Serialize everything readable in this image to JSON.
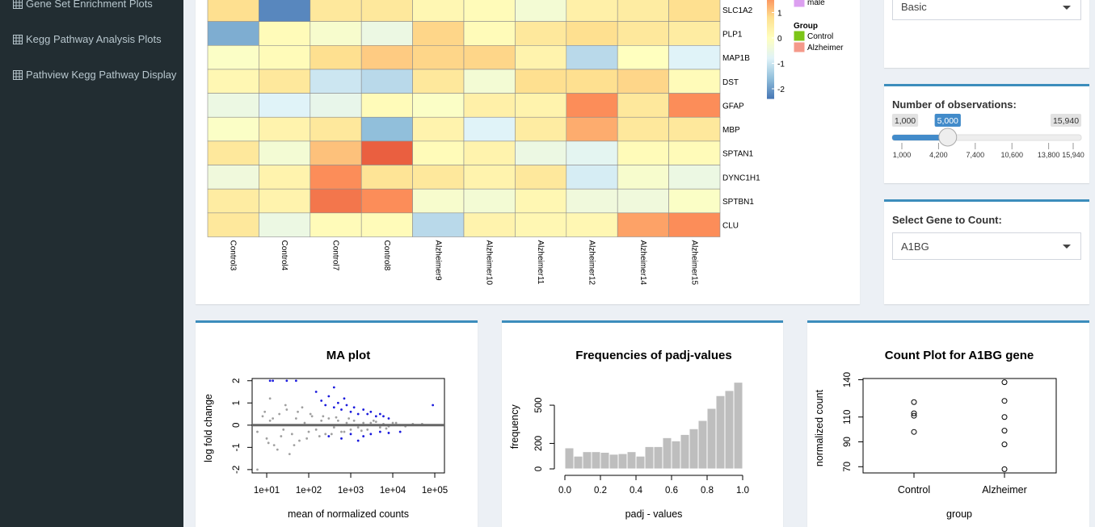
{
  "sidebar": {
    "items": [
      "Gene Set Enrichment Plots",
      "Kegg Pathway Analysis Plots",
      "Pathview Kegg Pathway Display"
    ]
  },
  "heatmap": {
    "type": "heatmap",
    "rows": [
      "SLC1A2",
      "PLP1",
      "MAP1B",
      "DST",
      "GFAP",
      "MBP",
      "SPTAN1",
      "DYNC1H1",
      "SPTBN1",
      "CLU"
    ],
    "columns": [
      "Control3",
      "Control4",
      "Control7",
      "Control8",
      "Alzheimer9",
      "Alzheimer10",
      "Alzheimer11",
      "Alzheimer12",
      "Alzheimer14",
      "Alzheimer15"
    ],
    "values": [
      [
        0.8,
        -2.2,
        0.6,
        0.6,
        0.2,
        0.1,
        -0.3,
        0.4,
        0.5,
        0.8
      ],
      [
        -1.8,
        0.1,
        -0.2,
        -0.5,
        0.9,
        0.1,
        0.6,
        0.8,
        0.6,
        0.5
      ],
      [
        -0.1,
        0.1,
        0.8,
        1.0,
        0.9,
        0.9,
        0.3,
        -1.2,
        0.0,
        -0.8
      ],
      [
        0.2,
        0.6,
        -1.0,
        -1.2,
        0.6,
        -0.3,
        0.8,
        0.8,
        0.9,
        0.1
      ],
      [
        -0.5,
        -0.8,
        -0.6,
        0.1,
        -0.1,
        0.4,
        0.3,
        1.6,
        0.6,
        1.6
      ],
      [
        -0.1,
        0.3,
        0.6,
        -1.6,
        0.3,
        -0.8,
        0.5,
        1.3,
        0.6,
        0.6
      ],
      [
        0.6,
        -0.3,
        1.1,
        2.0,
        0.1,
        0.3,
        -0.5,
        -0.7,
        0.1,
        0.1
      ],
      [
        -0.4,
        0.3,
        1.6,
        0.7,
        0.6,
        0.3,
        0.6,
        -0.9,
        -0.2,
        -0.5
      ],
      [
        0.5,
        0.3,
        1.8,
        1.6,
        -0.2,
        -0.3,
        0.2,
        -0.4,
        -0.4,
        -0.1
      ],
      [
        0.6,
        -0.5,
        0.1,
        0.1,
        -1.2,
        0.3,
        0.2,
        0.2,
        1.4,
        1.6
      ]
    ],
    "color_range": [
      -2.4,
      2.4
    ],
    "palette": [
      "#4575b4",
      "#91bfdb",
      "#e0f3f8",
      "#ffffbf",
      "#fee090",
      "#fc8d59",
      "#d73027"
    ],
    "colorbar_ticks": [
      1,
      0,
      -1,
      -2
    ],
    "annotation_legends": [
      {
        "entries": [
          {
            "name": "male",
            "color": "#dca0f0"
          }
        ]
      },
      {
        "title": "Group",
        "entries": [
          {
            "name": "Control",
            "color": "#7cc517"
          },
          {
            "name": "Alzheimer",
            "color": "#f4998a"
          }
        ]
      }
    ]
  },
  "controls": {
    "plot_type": "Basic",
    "observations": {
      "label": "Number of observations:",
      "min": {
        "value": 1000,
        "label": "1,000"
      },
      "max": {
        "value": 15940,
        "label": "15,940"
      },
      "value": {
        "value": 5000,
        "label": "5,000"
      },
      "ticks": [
        {
          "value": 1000,
          "label": "1,000"
        },
        {
          "value": 4200,
          "label": "4,200"
        },
        {
          "value": 7400,
          "label": "7,400"
        },
        {
          "value": 10600,
          "label": "10,600"
        },
        {
          "value": 13800,
          "label": "13,800"
        },
        {
          "value": 15940,
          "label": "15,940"
        }
      ],
      "color": "#428bca"
    },
    "gene": {
      "label": "Select Gene to Count:",
      "value": "A1BG"
    }
  },
  "plots": [
    {
      "type": "scatter",
      "title": "MA plot",
      "xlabel": "mean of normalized counts",
      "ylabel": "log fold change",
      "xlog": true,
      "xlim": [
        4.5,
        170000
      ],
      "ylim": [
        -2.15,
        2.1
      ],
      "xticks": [
        {
          "value": 10,
          "label": "1e+01"
        },
        {
          "value": 100,
          "label": "1e+02"
        },
        {
          "value": 1000,
          "label": "1e+03"
        },
        {
          "value": 10000,
          "label": "1e+04"
        },
        {
          "value": 100000,
          "label": "1e+05"
        }
      ],
      "yticks": [
        2,
        1,
        0,
        -1,
        -2
      ],
      "reference_line": 0,
      "series": [
        {
          "color": "#a0a0a0",
          "x": [
            6,
            8,
            10,
            12,
            15,
            20,
            25,
            30,
            40,
            50,
            60,
            80,
            100,
            120,
            150,
            200,
            250,
            300,
            400,
            500,
            600,
            800,
            1000,
            1200,
            1500,
            2000,
            2500,
            3000,
            4000,
            5000,
            6000,
            8000,
            10000,
            15000,
            20000,
            30000,
            12,
            18,
            35,
            70,
            9,
            11,
            14,
            22,
            28,
            45,
            55,
            90,
            110,
            180,
            220,
            350,
            450,
            700,
            900,
            1800,
            3500,
            7000,
            12000,
            50000,
            6
          ],
          "y": [
            -0.3,
            0.4,
            -0.6,
            0.2,
            -0.9,
            0.5,
            -0.2,
            0.7,
            -0.4,
            0.3,
            -0.7,
            0.1,
            -0.3,
            0.4,
            -0.2,
            0.2,
            -0.4,
            0.3,
            -0.1,
            0.2,
            -0.3,
            0.1,
            -0.2,
            0.2,
            -0.1,
            0.1,
            -0.2,
            0.1,
            0.15,
            -0.1,
            0.05,
            -0.05,
            0.1,
            0,
            -0.05,
            0.05,
            1.2,
            -1.1,
            -1.3,
            0.8,
            0.6,
            -0.8,
            0.3,
            -0.5,
            0.9,
            -0.9,
            0.6,
            -0.6,
            0.5,
            -0.5,
            0.4,
            -0.4,
            0.35,
            -0.3,
            0.3,
            -0.25,
            0.2,
            -0.15,
            0.1,
            0.05,
            -2
          ]
        },
        {
          "color": "#1a1adc",
          "x": [
            150,
            200,
            250,
            300,
            400,
            500,
            600,
            800,
            1000,
            1200,
            1500,
            2000,
            2500,
            3000,
            4000,
            5000,
            6000,
            8000,
            90000,
            300,
            600,
            1000,
            2000,
            3000,
            5000,
            8000,
            15000,
            400,
            700,
            1500,
            12,
            14,
            30,
            50
          ],
          "y": [
            1.5,
            1.1,
            0.9,
            1.3,
            0.8,
            1.0,
            0.7,
            0.9,
            0.6,
            0.8,
            0.5,
            0.7,
            0.5,
            0.6,
            0.4,
            0.5,
            0.4,
            0.3,
            0.9,
            -0.5,
            -0.6,
            -0.4,
            -0.5,
            -0.4,
            -0.3,
            -0.35,
            -0.3,
            1.7,
            1.2,
            -0.7,
            2,
            2,
            2,
            2
          ]
        }
      ]
    },
    {
      "type": "histogram",
      "title": "Frequencies of padj-values",
      "xlabel": "padj - values",
      "ylabel": "frequency",
      "bins": [
        0,
        0.05,
        0.1,
        0.15,
        0.2,
        0.25,
        0.3,
        0.35,
        0.4,
        0.45,
        0.5,
        0.55,
        0.6,
        0.65,
        0.7,
        0.75,
        0.8,
        0.85,
        0.9,
        0.95,
        1
      ],
      "counts": [
        165,
        100,
        135,
        135,
        130,
        115,
        120,
        135,
        100,
        175,
        175,
        245,
        220,
        270,
        315,
        380,
        475,
        575,
        615,
        680
      ],
      "color": "#bebebe",
      "xlim": [
        0,
        1
      ],
      "ylim": [
        0,
        700
      ],
      "xticks": [
        {
          "value": 0,
          "label": "0.0"
        },
        0.2,
        0.4,
        0.6,
        0.8,
        {
          "value": 1,
          "label": "1.0"
        }
      ],
      "yticks": [
        0,
        200,
        500
      ]
    },
    {
      "type": "strip",
      "title": "Count Plot for A1BG gene",
      "xlabel": "group",
      "ylabel": "normalized count",
      "categories": [
        "Control",
        "Alzheimer"
      ],
      "values": [
        [
          122,
          113,
          111,
          98
        ],
        [
          138,
          123,
          110,
          99,
          88,
          68
        ]
      ],
      "ylim": [
        65,
        141
      ],
      "yticks": [
        70,
        90,
        110,
        140
      ]
    }
  ]
}
